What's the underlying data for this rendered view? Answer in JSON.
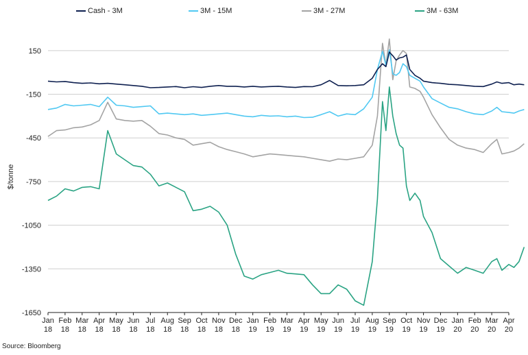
{
  "chart_data": {
    "type": "line",
    "title": "",
    "xlabel": "",
    "ylabel": "$/tonne",
    "ylim": [
      -1650,
      300
    ],
    "yticks": [
      150,
      -150,
      -450,
      -750,
      -1050,
      -1350,
      -1650
    ],
    "grid": true,
    "legend_position": "top",
    "x_months": [
      {
        "month": "Jan",
        "year": "18"
      },
      {
        "month": "Feb",
        "year": "18"
      },
      {
        "month": "Mar",
        "year": "18"
      },
      {
        "month": "Apr",
        "year": "18"
      },
      {
        "month": "May",
        "year": "18"
      },
      {
        "month": "Jun",
        "year": "18"
      },
      {
        "month": "Jul",
        "year": "18"
      },
      {
        "month": "Aug",
        "year": "18"
      },
      {
        "month": "Sep",
        "year": "18"
      },
      {
        "month": "Oct",
        "year": "18"
      },
      {
        "month": "Nov",
        "year": "18"
      },
      {
        "month": "Dec",
        "year": "18"
      },
      {
        "month": "Jan",
        "year": "19"
      },
      {
        "month": "Feb",
        "year": "19"
      },
      {
        "month": "Mar",
        "year": "19"
      },
      {
        "month": "Apr",
        "year": "19"
      },
      {
        "month": "May",
        "year": "19"
      },
      {
        "month": "Jun",
        "year": "19"
      },
      {
        "month": "Jul",
        "year": "19"
      },
      {
        "month": "Aug",
        "year": "19"
      },
      {
        "month": "Sep",
        "year": "19"
      },
      {
        "month": "Oct",
        "year": "19"
      },
      {
        "month": "Nov",
        "year": "19"
      },
      {
        "month": "Dec",
        "year": "19"
      },
      {
        "month": "Jan",
        "year": "20"
      },
      {
        "month": "Feb",
        "year": "20"
      },
      {
        "month": "Mar",
        "year": "20"
      },
      {
        "month": "Apr",
        "year": "20"
      }
    ],
    "series": [
      {
        "name": "Cash - 3M",
        "color": "#0d1f4f",
        "points": [
          [
            0,
            -60
          ],
          [
            0.5,
            -65
          ],
          [
            1,
            -62
          ],
          [
            1.5,
            -70
          ],
          [
            2,
            -75
          ],
          [
            2.5,
            -72
          ],
          [
            3,
            -78
          ],
          [
            3.5,
            -75
          ],
          [
            4,
            -80
          ],
          [
            4.5,
            -85
          ],
          [
            5,
            -90
          ],
          [
            5.5,
            -95
          ],
          [
            6,
            -105
          ],
          [
            6.5,
            -103
          ],
          [
            7,
            -100
          ],
          [
            7.5,
            -97
          ],
          [
            8,
            -105
          ],
          [
            8.5,
            -98
          ],
          [
            9,
            -103
          ],
          [
            9.5,
            -95
          ],
          [
            10,
            -90
          ],
          [
            10.5,
            -95
          ],
          [
            11,
            -95
          ],
          [
            11.5,
            -100
          ],
          [
            12,
            -95
          ],
          [
            12.5,
            -100
          ],
          [
            13,
            -97
          ],
          [
            13.5,
            -95
          ],
          [
            14,
            -100
          ],
          [
            14.5,
            -103
          ],
          [
            15,
            -97
          ],
          [
            15.5,
            -98
          ],
          [
            16,
            -85
          ],
          [
            16.5,
            -55
          ],
          [
            17,
            -90
          ],
          [
            17.5,
            -92
          ],
          [
            18,
            -90
          ],
          [
            18.5,
            -85
          ],
          [
            19,
            -40
          ],
          [
            19.3,
            20
          ],
          [
            19.6,
            60
          ],
          [
            19.8,
            40
          ],
          [
            20,
            140
          ],
          [
            20.2,
            115
          ],
          [
            20.4,
            85
          ],
          [
            20.6,
            100
          ],
          [
            20.8,
            105
          ],
          [
            21,
            120
          ],
          [
            21.2,
            20
          ],
          [
            21.5,
            -20
          ],
          [
            21.8,
            -40
          ],
          [
            22,
            -60
          ],
          [
            22.5,
            -70
          ],
          [
            23,
            -75
          ],
          [
            23.5,
            -82
          ],
          [
            24,
            -85
          ],
          [
            24.5,
            -90
          ],
          [
            25,
            -95
          ],
          [
            25.5,
            -97
          ],
          [
            26,
            -80
          ],
          [
            26.3,
            -65
          ],
          [
            26.6,
            -75
          ],
          [
            27,
            -70
          ],
          [
            27.3,
            -85
          ],
          [
            27.6,
            -80
          ],
          [
            27.9,
            -85
          ]
        ]
      },
      {
        "name": "3M - 15M",
        "color": "#4fc8f2",
        "points": [
          [
            0,
            -255
          ],
          [
            0.5,
            -245
          ],
          [
            1,
            -220
          ],
          [
            1.5,
            -230
          ],
          [
            2,
            -225
          ],
          [
            2.5,
            -220
          ],
          [
            3,
            -235
          ],
          [
            3.5,
            -170
          ],
          [
            4,
            -225
          ],
          [
            4.5,
            -230
          ],
          [
            5,
            -240
          ],
          [
            5.5,
            -235
          ],
          [
            6,
            -230
          ],
          [
            6.5,
            -285
          ],
          [
            7,
            -280
          ],
          [
            7.5,
            -285
          ],
          [
            8,
            -290
          ],
          [
            8.5,
            -285
          ],
          [
            9,
            -295
          ],
          [
            9.5,
            -290
          ],
          [
            10,
            -285
          ],
          [
            10.5,
            -280
          ],
          [
            11,
            -290
          ],
          [
            11.5,
            -300
          ],
          [
            12,
            -305
          ],
          [
            12.5,
            -295
          ],
          [
            13,
            -300
          ],
          [
            13.5,
            -298
          ],
          [
            14,
            -305
          ],
          [
            14.5,
            -300
          ],
          [
            15,
            -310
          ],
          [
            15.5,
            -308
          ],
          [
            16,
            -290
          ],
          [
            16.5,
            -270
          ],
          [
            17,
            -300
          ],
          [
            17.5,
            -285
          ],
          [
            18,
            -290
          ],
          [
            18.5,
            -250
          ],
          [
            19,
            -170
          ],
          [
            19.3,
            20
          ],
          [
            19.6,
            145
          ],
          [
            19.8,
            50
          ],
          [
            20,
            155
          ],
          [
            20.2,
            -10
          ],
          [
            20.4,
            -20
          ],
          [
            20.6,
            0
          ],
          [
            20.8,
            60
          ],
          [
            21,
            40
          ],
          [
            21.2,
            -20
          ],
          [
            21.5,
            -40
          ],
          [
            21.8,
            -60
          ],
          [
            22,
            -100
          ],
          [
            22.5,
            -180
          ],
          [
            23,
            -210
          ],
          [
            23.5,
            -240
          ],
          [
            24,
            -250
          ],
          [
            24.5,
            -270
          ],
          [
            25,
            -285
          ],
          [
            25.5,
            -290
          ],
          [
            26,
            -265
          ],
          [
            26.3,
            -240
          ],
          [
            26.6,
            -270
          ],
          [
            27,
            -275
          ],
          [
            27.3,
            -280
          ],
          [
            27.6,
            -265
          ],
          [
            27.9,
            -255
          ]
        ]
      },
      {
        "name": "3M - 27M",
        "color": "#a3a3a3",
        "points": [
          [
            0,
            -440
          ],
          [
            0.5,
            -400
          ],
          [
            1,
            -395
          ],
          [
            1.5,
            -380
          ],
          [
            2,
            -375
          ],
          [
            2.5,
            -360
          ],
          [
            3,
            -330
          ],
          [
            3.5,
            -205
          ],
          [
            4,
            -320
          ],
          [
            4.5,
            -330
          ],
          [
            5,
            -335
          ],
          [
            5.5,
            -330
          ],
          [
            6,
            -370
          ],
          [
            6.5,
            -420
          ],
          [
            7,
            -430
          ],
          [
            7.5,
            -450
          ],
          [
            8,
            -460
          ],
          [
            8.5,
            -500
          ],
          [
            9,
            -490
          ],
          [
            9.5,
            -480
          ],
          [
            10,
            -510
          ],
          [
            10.5,
            -530
          ],
          [
            11,
            -545
          ],
          [
            11.5,
            -560
          ],
          [
            12,
            -580
          ],
          [
            12.5,
            -570
          ],
          [
            13,
            -560
          ],
          [
            13.5,
            -565
          ],
          [
            14,
            -570
          ],
          [
            14.5,
            -575
          ],
          [
            15,
            -580
          ],
          [
            15.5,
            -590
          ],
          [
            16,
            -600
          ],
          [
            16.5,
            -610
          ],
          [
            17,
            -595
          ],
          [
            17.5,
            -600
          ],
          [
            18,
            -590
          ],
          [
            18.5,
            -580
          ],
          [
            19,
            -500
          ],
          [
            19.3,
            -300
          ],
          [
            19.6,
            200
          ],
          [
            19.8,
            50
          ],
          [
            20,
            230
          ],
          [
            20.2,
            -50
          ],
          [
            20.4,
            80
          ],
          [
            20.6,
            120
          ],
          [
            20.8,
            150
          ],
          [
            21,
            130
          ],
          [
            21.2,
            -100
          ],
          [
            21.5,
            -110
          ],
          [
            21.8,
            -130
          ],
          [
            22,
            -170
          ],
          [
            22.5,
            -290
          ],
          [
            23,
            -380
          ],
          [
            23.5,
            -460
          ],
          [
            24,
            -500
          ],
          [
            24.5,
            -520
          ],
          [
            25,
            -530
          ],
          [
            25.5,
            -550
          ],
          [
            26,
            -490
          ],
          [
            26.3,
            -460
          ],
          [
            26.6,
            -560
          ],
          [
            27,
            -550
          ],
          [
            27.3,
            -540
          ],
          [
            27.6,
            -520
          ],
          [
            27.9,
            -490
          ]
        ]
      },
      {
        "name": "3M - 63M",
        "color": "#29a383",
        "points": [
          [
            0,
            -880
          ],
          [
            0.5,
            -850
          ],
          [
            1,
            -800
          ],
          [
            1.5,
            -815
          ],
          [
            2,
            -790
          ],
          [
            2.5,
            -785
          ],
          [
            3,
            -800
          ],
          [
            3.5,
            -400
          ],
          [
            4,
            -560
          ],
          [
            4.5,
            -600
          ],
          [
            5,
            -640
          ],
          [
            5.5,
            -650
          ],
          [
            6,
            -700
          ],
          [
            6.5,
            -780
          ],
          [
            7,
            -760
          ],
          [
            7.5,
            -790
          ],
          [
            8,
            -820
          ],
          [
            8.5,
            -950
          ],
          [
            9,
            -940
          ],
          [
            9.5,
            -920
          ],
          [
            10,
            -960
          ],
          [
            10.5,
            -1050
          ],
          [
            11,
            -1250
          ],
          [
            11.5,
            -1400
          ],
          [
            12,
            -1420
          ],
          [
            12.5,
            -1390
          ],
          [
            13,
            -1375
          ],
          [
            13.5,
            -1360
          ],
          [
            14,
            -1380
          ],
          [
            14.5,
            -1385
          ],
          [
            15,
            -1390
          ],
          [
            15.5,
            -1460
          ],
          [
            16,
            -1520
          ],
          [
            16.5,
            -1520
          ],
          [
            17,
            -1460
          ],
          [
            17.5,
            -1490
          ],
          [
            18,
            -1570
          ],
          [
            18.5,
            -1600
          ],
          [
            19,
            -1300
          ],
          [
            19.3,
            -870
          ],
          [
            19.6,
            -200
          ],
          [
            19.8,
            -400
          ],
          [
            20,
            -100
          ],
          [
            20.2,
            -300
          ],
          [
            20.4,
            -420
          ],
          [
            20.6,
            -500
          ],
          [
            20.8,
            -520
          ],
          [
            21,
            -780
          ],
          [
            21.2,
            -880
          ],
          [
            21.5,
            -830
          ],
          [
            21.8,
            -880
          ],
          [
            22,
            -990
          ],
          [
            22.5,
            -1100
          ],
          [
            23,
            -1280
          ],
          [
            23.5,
            -1330
          ],
          [
            24,
            -1380
          ],
          [
            24.5,
            -1340
          ],
          [
            25,
            -1360
          ],
          [
            25.5,
            -1380
          ],
          [
            26,
            -1300
          ],
          [
            26.3,
            -1280
          ],
          [
            26.6,
            -1360
          ],
          [
            27,
            -1320
          ],
          [
            27.3,
            -1340
          ],
          [
            27.6,
            -1300
          ],
          [
            27.9,
            -1200
          ]
        ]
      }
    ]
  },
  "source": "Source: Bloomberg"
}
